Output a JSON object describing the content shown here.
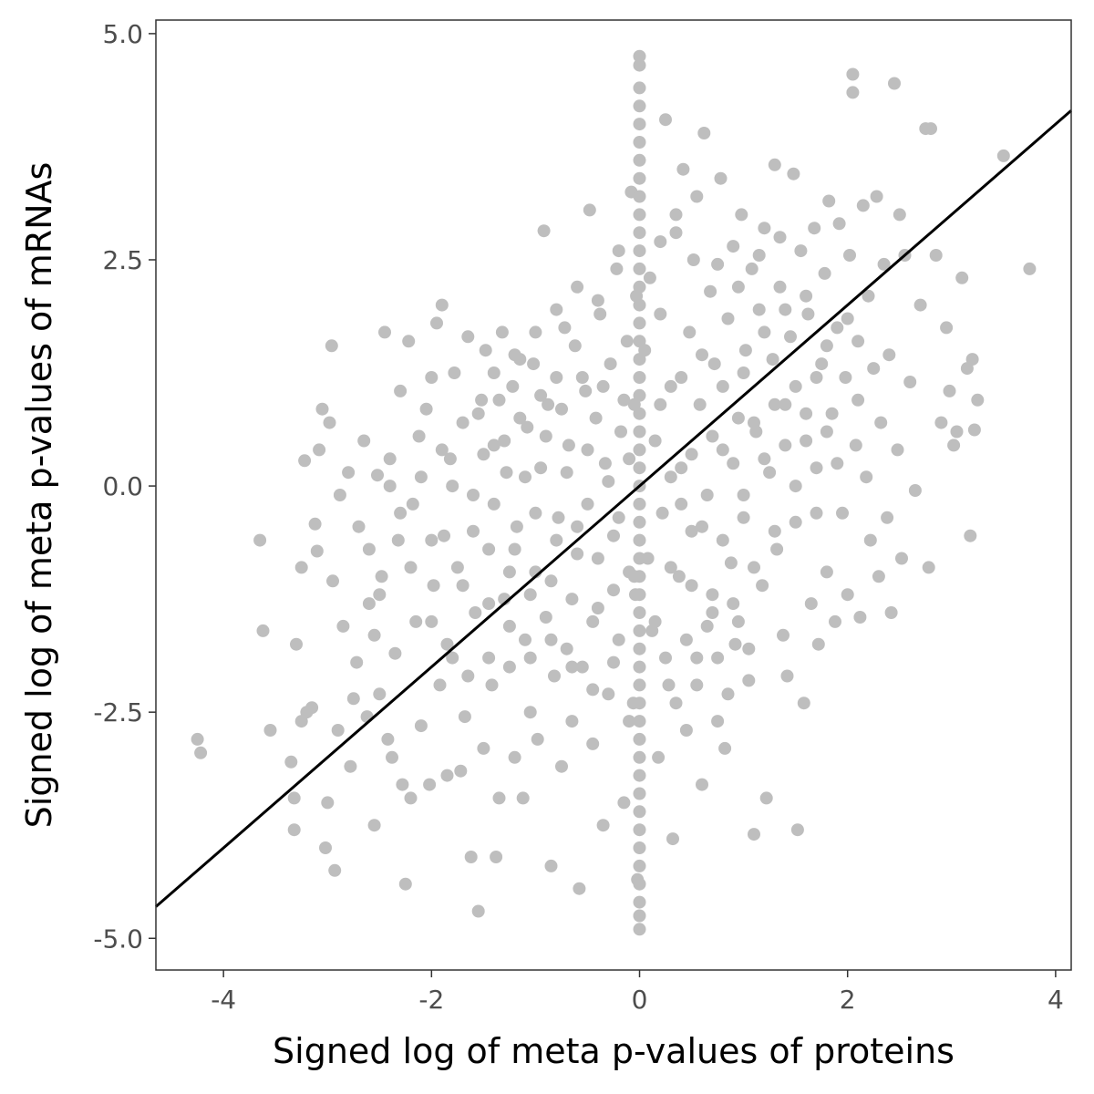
{
  "chart_data": {
    "type": "scatter",
    "title": "",
    "xlabel": "Signed log of meta p-values of proteins",
    "ylabel": "Signed log of meta p-values of mRNAs",
    "xlim": [
      -4.65,
      4.15
    ],
    "ylim": [
      -5.35,
      5.15
    ],
    "x_ticks": [
      -4,
      -2,
      0,
      2,
      4
    ],
    "x_tick_labels": [
      "-4",
      "-2",
      "0",
      "2",
      "4"
    ],
    "y_ticks": [
      -5.0,
      -2.5,
      0.0,
      2.5,
      5.0
    ],
    "y_tick_labels": [
      "-5.0",
      "-2.5",
      "0.0",
      "2.5",
      "5.0"
    ],
    "grid": false,
    "legend": "none",
    "point_color": "#bebebe",
    "fit_line": {
      "slope": 1.0,
      "intercept": 0.0,
      "color": "#000000"
    },
    "points": [
      [
        -4.25,
        -2.8
      ],
      [
        -4.22,
        -2.95
      ],
      [
        -3.65,
        -0.6
      ],
      [
        -3.62,
        -1.6
      ],
      [
        -3.55,
        -2.7
      ],
      [
        -3.35,
        -3.05
      ],
      [
        -3.32,
        -3.45
      ],
      [
        -3.32,
        -3.8
      ],
      [
        -3.3,
        -1.75
      ],
      [
        -3.25,
        -2.6
      ],
      [
        -3.25,
        -0.9
      ],
      [
        -3.22,
        0.28
      ],
      [
        -3.2,
        -2.5
      ],
      [
        -3.15,
        -2.45
      ],
      [
        -3.12,
        -0.42
      ],
      [
        -3.1,
        -0.72
      ],
      [
        -3.08,
        0.4
      ],
      [
        -3.05,
        0.85
      ],
      [
        -3.02,
        -4.0
      ],
      [
        -3.0,
        -3.5
      ],
      [
        -2.98,
        0.7
      ],
      [
        -2.96,
        1.55
      ],
      [
        -2.95,
        -1.05
      ],
      [
        -2.93,
        -4.25
      ],
      [
        -2.9,
        -2.7
      ],
      [
        -2.88,
        -0.1
      ],
      [
        -2.85,
        -1.55
      ],
      [
        -2.8,
        0.15
      ],
      [
        -2.78,
        -3.1
      ],
      [
        -2.75,
        -2.35
      ],
      [
        -2.72,
        -1.95
      ],
      [
        -2.7,
        -0.45
      ],
      [
        -2.65,
        0.5
      ],
      [
        -2.62,
        -2.55
      ],
      [
        -2.6,
        -1.3
      ],
      [
        -2.55,
        -3.75
      ],
      [
        -2.55,
        -1.65
      ],
      [
        -2.52,
        0.12
      ],
      [
        -2.5,
        -2.3
      ],
      [
        -2.48,
        -1.0
      ],
      [
        -2.45,
        1.7
      ],
      [
        -2.42,
        -2.8
      ],
      [
        -2.4,
        0.3
      ],
      [
        -2.38,
        -3.0
      ],
      [
        -2.35,
        -1.85
      ],
      [
        -2.32,
        -0.6
      ],
      [
        -2.3,
        1.05
      ],
      [
        -2.28,
        -3.3
      ],
      [
        -2.25,
        -4.4
      ],
      [
        -2.22,
        1.6
      ],
      [
        -2.2,
        -3.45
      ],
      [
        -2.18,
        -0.2
      ],
      [
        -2.15,
        -1.5
      ],
      [
        -2.12,
        0.55
      ],
      [
        -2.1,
        -2.65
      ],
      [
        -2.05,
        0.85
      ],
      [
        -2.02,
        -3.3
      ],
      [
        -2.0,
        1.2
      ],
      [
        -1.98,
        -1.1
      ],
      [
        -1.95,
        1.8
      ],
      [
        -1.92,
        -2.2
      ],
      [
        -1.9,
        2.0
      ],
      [
        -1.88,
        -0.55
      ],
      [
        -1.85,
        -3.2
      ],
      [
        -1.82,
        0.3
      ],
      [
        -1.8,
        -1.9
      ],
      [
        -1.78,
        1.25
      ],
      [
        -1.75,
        -0.9
      ],
      [
        -1.72,
        -3.15
      ],
      [
        -1.7,
        0.7
      ],
      [
        -1.68,
        -2.55
      ],
      [
        -1.65,
        1.65
      ],
      [
        -1.62,
        -4.1
      ],
      [
        -1.6,
        -0.1
      ],
      [
        -1.58,
        -1.4
      ],
      [
        -1.55,
        -4.7
      ],
      [
        -1.52,
        0.95
      ],
      [
        -1.5,
        -2.9
      ],
      [
        -1.48,
        1.5
      ],
      [
        -1.45,
        -0.7
      ],
      [
        -1.42,
        -2.2
      ],
      [
        -1.4,
        0.45
      ],
      [
        -1.38,
        -4.1
      ],
      [
        -1.35,
        -3.45
      ],
      [
        -1.32,
        1.7
      ],
      [
        -1.3,
        -1.25
      ],
      [
        -1.28,
        0.15
      ],
      [
        -1.25,
        -2.0
      ],
      [
        -1.22,
        1.1
      ],
      [
        -1.2,
        -3.0
      ],
      [
        -1.18,
        -0.45
      ],
      [
        -1.15,
        1.4
      ],
      [
        -1.12,
        -3.45
      ],
      [
        -1.1,
        -1.7
      ],
      [
        -1.08,
        0.65
      ],
      [
        -1.05,
        -2.5
      ],
      [
        -1.02,
        1.35
      ],
      [
        -1.0,
        -0.95
      ],
      [
        -0.98,
        -2.8
      ],
      [
        -0.95,
        0.2
      ],
      [
        -0.92,
        2.82
      ],
      [
        -0.9,
        -1.45
      ],
      [
        -0.88,
        0.9
      ],
      [
        -0.85,
        -4.2
      ],
      [
        -0.82,
        -2.1
      ],
      [
        -0.8,
        1.2
      ],
      [
        -0.78,
        -0.35
      ],
      [
        -0.75,
        -3.1
      ],
      [
        -0.72,
        1.75
      ],
      [
        -0.7,
        -1.8
      ],
      [
        -0.68,
        0.45
      ],
      [
        -0.65,
        -2.6
      ],
      [
        -0.62,
        1.55
      ],
      [
        -0.6,
        -0.75
      ],
      [
        -0.58,
        -4.45
      ],
      [
        -0.55,
        -2.0
      ],
      [
        -0.52,
        1.05
      ],
      [
        -0.5,
        -0.2
      ],
      [
        -0.48,
        3.05
      ],
      [
        -0.45,
        -2.85
      ],
      [
        -0.42,
        0.75
      ],
      [
        -0.4,
        -1.35
      ],
      [
        -0.38,
        1.9
      ],
      [
        -0.35,
        -3.75
      ],
      [
        -0.33,
        0.25
      ],
      [
        -0.3,
        -2.3
      ],
      [
        -0.28,
        1.35
      ],
      [
        -0.25,
        -0.55
      ],
      [
        -0.22,
        2.4
      ],
      [
        -0.2,
        -1.7
      ],
      [
        -0.18,
        0.6
      ],
      [
        -0.15,
        -3.5
      ],
      [
        -0.12,
        1.6
      ],
      [
        -0.1,
        -0.95
      ],
      [
        -0.08,
        3.25
      ],
      [
        -0.06,
        -2.4
      ],
      [
        -0.05,
        0.9
      ],
      [
        -0.04,
        -1.2
      ],
      [
        -0.03,
        2.1
      ],
      [
        -0.02,
        -4.35
      ],
      [
        -1.8,
        0.0
      ],
      [
        -1.6,
        -0.5
      ],
      [
        -1.5,
        0.35
      ],
      [
        -1.4,
        -0.2
      ],
      [
        -1.3,
        0.5
      ],
      [
        -1.2,
        -0.7
      ],
      [
        -1.1,
        0.1
      ],
      [
        -1.0,
        -0.3
      ],
      [
        -0.9,
        0.55
      ],
      [
        -0.8,
        -0.6
      ],
      [
        -0.7,
        0.15
      ],
      [
        -0.6,
        -0.45
      ],
      [
        -0.5,
        0.4
      ],
      [
        -0.4,
        -0.8
      ],
      [
        -0.3,
        0.05
      ],
      [
        -0.2,
        -0.35
      ],
      [
        -0.1,
        0.3
      ],
      [
        -2.0,
        -0.6
      ],
      [
        -1.9,
        0.4
      ],
      [
        -1.7,
        -1.1
      ],
      [
        -1.55,
        0.8
      ],
      [
        -1.45,
        -1.3
      ],
      [
        -1.35,
        0.95
      ],
      [
        -1.25,
        -0.95
      ],
      [
        -1.15,
        0.75
      ],
      [
        -1.05,
        -1.2
      ],
      [
        -0.95,
        1.0
      ],
      [
        -0.85,
        -1.05
      ],
      [
        -0.75,
        0.85
      ],
      [
        -0.65,
        -1.25
      ],
      [
        -0.55,
        1.2
      ],
      [
        -0.45,
        -1.5
      ],
      [
        -0.35,
        1.1
      ],
      [
        -0.25,
        -1.15
      ],
      [
        -0.15,
        0.95
      ],
      [
        -0.05,
        -1.0
      ],
      [
        -2.2,
        -0.9
      ],
      [
        -2.1,
        0.1
      ],
      [
        -2.3,
        -0.3
      ],
      [
        -2.4,
        0.0
      ],
      [
        -2.6,
        -0.7
      ],
      [
        -2.5,
        -1.2
      ],
      [
        -2.0,
        -1.5
      ],
      [
        -1.85,
        -1.75
      ],
      [
        -1.65,
        -2.1
      ],
      [
        -1.45,
        -1.9
      ],
      [
        -1.25,
        -1.55
      ],
      [
        -1.05,
        -1.9
      ],
      [
        -0.85,
        -1.7
      ],
      [
        -0.65,
        -2.0
      ],
      [
        -0.45,
        -2.25
      ],
      [
        -0.25,
        -1.95
      ],
      [
        -0.1,
        -2.6
      ],
      [
        -1.0,
        1.7
      ],
      [
        -0.8,
        1.95
      ],
      [
        -0.6,
        2.2
      ],
      [
        -0.4,
        2.05
      ],
      [
        -0.2,
        2.6
      ],
      [
        -1.2,
        1.45
      ],
      [
        -1.4,
        1.25
      ],
      [
        0.0,
        4.75
      ],
      [
        0.0,
        4.65
      ],
      [
        0.0,
        4.4
      ],
      [
        0.0,
        4.2
      ],
      [
        0.0,
        4.0
      ],
      [
        0.0,
        3.8
      ],
      [
        0.0,
        3.6
      ],
      [
        0.0,
        3.4
      ],
      [
        0.0,
        3.2
      ],
      [
        0.0,
        3.0
      ],
      [
        0.0,
        2.8
      ],
      [
        0.0,
        2.6
      ],
      [
        0.0,
        2.4
      ],
      [
        0.0,
        2.2
      ],
      [
        0.0,
        2.0
      ],
      [
        0.0,
        1.8
      ],
      [
        0.0,
        1.6
      ],
      [
        0.0,
        1.4
      ],
      [
        0.0,
        1.2
      ],
      [
        0.0,
        1.0
      ],
      [
        0.0,
        0.8
      ],
      [
        0.0,
        0.6
      ],
      [
        0.0,
        0.4
      ],
      [
        0.0,
        0.2
      ],
      [
        0.0,
        0.0
      ],
      [
        0.0,
        -0.2
      ],
      [
        0.0,
        -0.4
      ],
      [
        0.0,
        -0.6
      ],
      [
        0.0,
        -0.8
      ],
      [
        0.0,
        -1.0
      ],
      [
        0.0,
        -1.2
      ],
      [
        0.0,
        -1.4
      ],
      [
        0.0,
        -1.6
      ],
      [
        0.0,
        -1.8
      ],
      [
        0.0,
        -2.0
      ],
      [
        0.0,
        -2.2
      ],
      [
        0.0,
        -2.4
      ],
      [
        0.0,
        -2.6
      ],
      [
        0.0,
        -2.8
      ],
      [
        0.0,
        -3.0
      ],
      [
        0.0,
        -3.2
      ],
      [
        0.0,
        -3.4
      ],
      [
        0.0,
        -3.6
      ],
      [
        0.0,
        -3.8
      ],
      [
        0.0,
        -4.0
      ],
      [
        0.0,
        -4.2
      ],
      [
        0.0,
        -4.4
      ],
      [
        0.0,
        -4.6
      ],
      [
        0.0,
        -4.75
      ],
      [
        0.0,
        -4.9
      ],
      [
        0.05,
        1.5
      ],
      [
        0.08,
        -0.8
      ],
      [
        0.1,
        2.3
      ],
      [
        0.12,
        -1.6
      ],
      [
        0.15,
        0.5
      ],
      [
        0.18,
        -3.0
      ],
      [
        0.2,
        1.9
      ],
      [
        0.22,
        -0.3
      ],
      [
        0.25,
        4.05
      ],
      [
        0.28,
        -2.2
      ],
      [
        0.3,
        1.1
      ],
      [
        0.32,
        -3.9
      ],
      [
        0.35,
        2.8
      ],
      [
        0.38,
        -1.0
      ],
      [
        0.4,
        0.2
      ],
      [
        0.42,
        3.5
      ],
      [
        0.45,
        -2.7
      ],
      [
        0.48,
        1.7
      ],
      [
        0.5,
        -0.5
      ],
      [
        0.52,
        2.5
      ],
      [
        0.55,
        -1.9
      ],
      [
        0.58,
        0.9
      ],
      [
        0.6,
        -3.3
      ],
      [
        0.62,
        3.9
      ],
      [
        0.65,
        -0.1
      ],
      [
        0.68,
        2.15
      ],
      [
        0.7,
        -1.4
      ],
      [
        0.72,
        1.35
      ],
      [
        0.75,
        -2.6
      ],
      [
        0.78,
        3.4
      ],
      [
        0.8,
        0.4
      ],
      [
        0.82,
        -2.9
      ],
      [
        0.85,
        1.85
      ],
      [
        0.88,
        -0.85
      ],
      [
        0.9,
        2.65
      ],
      [
        0.92,
        -1.75
      ],
      [
        0.95,
        0.75
      ],
      [
        0.98,
        3.0
      ],
      [
        1.0,
        -0.35
      ],
      [
        1.02,
        1.5
      ],
      [
        1.05,
        -2.15
      ],
      [
        1.08,
        2.4
      ],
      [
        1.1,
        -3.85
      ],
      [
        1.12,
        0.6
      ],
      [
        1.15,
        1.95
      ],
      [
        1.18,
        -1.1
      ],
      [
        1.2,
        2.85
      ],
      [
        1.22,
        -3.45
      ],
      [
        1.25,
        0.15
      ],
      [
        1.28,
        1.4
      ],
      [
        1.3,
        3.55
      ],
      [
        1.32,
        -0.7
      ],
      [
        1.35,
        2.2
      ],
      [
        1.38,
        -1.65
      ],
      [
        1.4,
        0.9
      ],
      [
        1.42,
        -2.1
      ],
      [
        1.45,
        1.65
      ],
      [
        1.48,
        3.45
      ],
      [
        1.5,
        -0.4
      ],
      [
        1.52,
        -3.8
      ],
      [
        1.55,
        2.6
      ],
      [
        1.58,
        -2.4
      ],
      [
        1.6,
        0.5
      ],
      [
        1.62,
        1.9
      ],
      [
        1.65,
        -1.3
      ],
      [
        1.68,
        2.85
      ],
      [
        1.7,
        0.2
      ],
      [
        1.72,
        -1.75
      ],
      [
        1.75,
        1.35
      ],
      [
        1.78,
        2.35
      ],
      [
        1.8,
        -0.95
      ],
      [
        1.82,
        3.15
      ],
      [
        1.85,
        0.8
      ],
      [
        1.88,
        -1.5
      ],
      [
        1.9,
        1.75
      ],
      [
        1.92,
        2.9
      ],
      [
        1.95,
        -0.3
      ],
      [
        1.98,
        1.2
      ],
      [
        2.0,
        -1.2
      ],
      [
        2.02,
        2.55
      ],
      [
        2.05,
        4.55
      ],
      [
        2.05,
        4.35
      ],
      [
        2.08,
        0.45
      ],
      [
        2.1,
        1.6
      ],
      [
        2.12,
        -1.45
      ],
      [
        2.15,
        3.1
      ],
      [
        2.18,
        0.1
      ],
      [
        2.2,
        2.1
      ],
      [
        2.22,
        -0.6
      ],
      [
        2.25,
        1.3
      ],
      [
        2.28,
        3.2
      ],
      [
        2.3,
        -1.0
      ],
      [
        2.32,
        0.7
      ],
      [
        2.35,
        2.45
      ],
      [
        2.38,
        -0.35
      ],
      [
        2.4,
        1.45
      ],
      [
        2.42,
        -1.4
      ],
      [
        2.45,
        4.45
      ],
      [
        2.48,
        0.4
      ],
      [
        2.5,
        3.0
      ],
      [
        2.52,
        -0.8
      ],
      [
        2.55,
        2.55
      ],
      [
        2.6,
        1.15
      ],
      [
        2.65,
        -0.05
      ],
      [
        2.7,
        2.0
      ],
      [
        2.75,
        3.95
      ],
      [
        2.8,
        3.95
      ],
      [
        2.78,
        -0.9
      ],
      [
        2.85,
        2.55
      ],
      [
        2.9,
        0.7
      ],
      [
        2.95,
        1.75
      ],
      [
        2.98,
        1.05
      ],
      [
        3.02,
        0.45
      ],
      [
        3.05,
        0.6
      ],
      [
        3.1,
        2.3
      ],
      [
        3.15,
        1.3
      ],
      [
        3.18,
        -0.55
      ],
      [
        3.2,
        1.4
      ],
      [
        3.22,
        0.62
      ],
      [
        3.25,
        0.95
      ],
      [
        3.5,
        3.65
      ],
      [
        3.75,
        2.4
      ],
      [
        0.3,
        0.1
      ],
      [
        0.4,
        -0.2
      ],
      [
        0.5,
        0.35
      ],
      [
        0.6,
        -0.45
      ],
      [
        0.7,
        0.55
      ],
      [
        0.8,
        -0.6
      ],
      [
        0.9,
        0.25
      ],
      [
        1.0,
        -0.1
      ],
      [
        1.1,
        0.7
      ],
      [
        1.2,
        0.3
      ],
      [
        1.3,
        0.9
      ],
      [
        1.4,
        0.45
      ],
      [
        1.5,
        1.1
      ],
      [
        1.6,
        0.8
      ],
      [
        1.7,
        1.2
      ],
      [
        1.8,
        0.6
      ],
      [
        0.2,
        0.9
      ],
      [
        0.3,
        -0.9
      ],
      [
        0.4,
        1.2
      ],
      [
        0.5,
        -1.1
      ],
      [
        0.6,
        1.45
      ],
      [
        0.7,
        -1.2
      ],
      [
        0.8,
        1.1
      ],
      [
        0.9,
        -1.3
      ],
      [
        1.0,
        1.25
      ],
      [
        1.1,
        -0.9
      ],
      [
        1.2,
        1.7
      ],
      [
        1.3,
        -0.5
      ],
      [
        1.4,
        1.95
      ],
      [
        1.5,
        0.0
      ],
      [
        1.6,
        2.1
      ],
      [
        1.7,
        -0.3
      ],
      [
        1.8,
        1.55
      ],
      [
        1.9,
        0.25
      ],
      [
        2.0,
        1.85
      ],
      [
        2.1,
        0.95
      ],
      [
        0.15,
        -1.5
      ],
      [
        0.25,
        -1.9
      ],
      [
        0.35,
        -2.4
      ],
      [
        0.45,
        -1.7
      ],
      [
        0.55,
        -2.2
      ],
      [
        0.65,
        -1.55
      ],
      [
        0.75,
        -1.9
      ],
      [
        0.85,
        -2.3
      ],
      [
        0.95,
        -1.5
      ],
      [
        1.05,
        -1.8
      ],
      [
        0.2,
        2.7
      ],
      [
        0.35,
        3.0
      ],
      [
        0.55,
        3.2
      ],
      [
        0.75,
        2.45
      ],
      [
        0.95,
        2.2
      ],
      [
        1.15,
        2.55
      ],
      [
        1.35,
        2.75
      ]
    ]
  }
}
